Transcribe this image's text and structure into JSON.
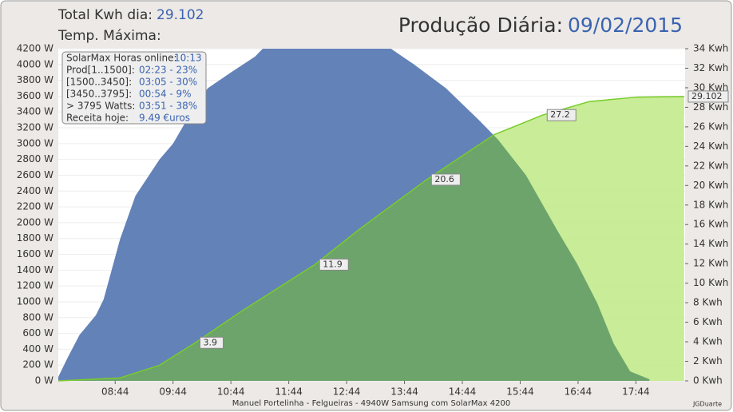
{
  "header": {
    "total_label": "Total Kwh dia:",
    "total_value": "29.102",
    "temp_label": "Temp. Máxima:",
    "title": "Produção Diária:",
    "date": "09/02/2015"
  },
  "info": [
    {
      "label": "SolarMax Horas online:",
      "value": "10:13"
    },
    {
      "label": "Prod[1..1500]:",
      "value": "02:23 - 23%"
    },
    {
      "label": "[1500..3450]:",
      "value": "03:05 - 30%"
    },
    {
      "label": "[3450..3795]:",
      "value": "00:54 - 9%"
    },
    {
      "label": "> 3795 Watts:",
      "value": "03:51 - 38%"
    },
    {
      "label": "Receita hoje:",
      "value": "9.49 €uros"
    }
  ],
  "footer": {
    "text": "Manuel Portelinha - Felgueiras -  4940W Samsung com SolarMax 4200",
    "credit": "JGDuarte"
  },
  "chart_data": {
    "type": "area",
    "xlim": [
      465,
      1115
    ],
    "xticks": [
      {
        "value": 524,
        "label": "08:44"
      },
      {
        "value": 584,
        "label": "09:44"
      },
      {
        "value": 644,
        "label": "10:44"
      },
      {
        "value": 704,
        "label": "11:44"
      },
      {
        "value": 764,
        "label": "12:44"
      },
      {
        "value": 824,
        "label": "13:44"
      },
      {
        "value": 884,
        "label": "14:44"
      },
      {
        "value": 944,
        "label": "15:44"
      },
      {
        "value": 1004,
        "label": "16:44"
      },
      {
        "value": 1064,
        "label": "17:44"
      }
    ],
    "ylim": [
      0,
      4200
    ],
    "yticks": [
      {
        "value": 0,
        "label": "0 W"
      },
      {
        "value": 200,
        "label": "200 W"
      },
      {
        "value": 400,
        "label": "400 W"
      },
      {
        "value": 600,
        "label": "600 W"
      },
      {
        "value": 800,
        "label": "800 W"
      },
      {
        "value": 1000,
        "label": "1000 W"
      },
      {
        "value": 1200,
        "label": "1200 W"
      },
      {
        "value": 1400,
        "label": "1400 W"
      },
      {
        "value": 1600,
        "label": "1600 W"
      },
      {
        "value": 1800,
        "label": "1800 W"
      },
      {
        "value": 2000,
        "label": "2000 W"
      },
      {
        "value": 2200,
        "label": "2200 W"
      },
      {
        "value": 2400,
        "label": "2400 W"
      },
      {
        "value": 2600,
        "label": "2600 W"
      },
      {
        "value": 2800,
        "label": "2800 W"
      },
      {
        "value": 3000,
        "label": "3000 W"
      },
      {
        "value": 3200,
        "label": "3200 W"
      },
      {
        "value": 3400,
        "label": "3400 W"
      },
      {
        "value": 3600,
        "label": "3600 W"
      },
      {
        "value": 3800,
        "label": "3800 W"
      },
      {
        "value": 4000,
        "label": "4000 W"
      },
      {
        "value": 4200,
        "label": "4200 W"
      }
    ],
    "y2lim": [
      0,
      34
    ],
    "y2ticks": [
      {
        "value": 0,
        "label": "0 Kwh"
      },
      {
        "value": 2,
        "label": "2 Kwh"
      },
      {
        "value": 4,
        "label": "4 Kwh"
      },
      {
        "value": 6,
        "label": "6 Kwh"
      },
      {
        "value": 8,
        "label": "8 Kwh"
      },
      {
        "value": 10,
        "label": "10 Kwh"
      },
      {
        "value": 12,
        "label": "12 Kwh"
      },
      {
        "value": 14,
        "label": "14 Kwh"
      },
      {
        "value": 16,
        "label": "16 Kwh"
      },
      {
        "value": 18,
        "label": "18 Kwh"
      },
      {
        "value": 20,
        "label": "20 Kwh"
      },
      {
        "value": 22,
        "label": "22 Kwh"
      },
      {
        "value": 24,
        "label": "24 Kwh"
      },
      {
        "value": 26,
        "label": "26 Kwh"
      },
      {
        "value": 28,
        "label": "28 Kwh"
      },
      {
        "value": 30,
        "label": "30 Kwh"
      },
      {
        "value": 32,
        "label": "32 Kwh"
      },
      {
        "value": 34,
        "label": "34 Kwh"
      }
    ],
    "series": [
      {
        "color": "#6382b8",
        "x": [
          465,
          475,
          487,
          504,
          512,
          529,
          545,
          570,
          584,
          603,
          620,
          644,
          669,
          677,
          810,
          834,
          867,
          901,
          921,
          950,
          983,
          1003,
          1024,
          1041,
          1058,
          1078
        ],
        "values": [
          50,
          300,
          580,
          830,
          1030,
          1790,
          2340,
          2800,
          3000,
          3400,
          3700,
          3900,
          4100,
          4200,
          4200,
          4000,
          3700,
          3300,
          3050,
          2600,
          1890,
          1480,
          980,
          470,
          120,
          20
        ]
      },
      {
        "color": "#c2ea8c",
        "axis": "y2",
        "x": [
          465,
          529,
          570,
          607,
          653,
          731,
          777,
          847,
          917,
          967,
          1016,
          1066,
          1114
        ],
        "values": [
          0,
          0.3,
          1.6,
          3.9,
          7.0,
          11.9,
          15.5,
          20.6,
          25.2,
          27.2,
          28.6,
          29.05,
          29.102
        ],
        "value_labels": [
          null,
          null,
          null,
          "3.9",
          null,
          "11.9",
          null,
          "20.6",
          null,
          "27.2",
          null,
          null,
          "29.102"
        ]
      }
    ]
  }
}
